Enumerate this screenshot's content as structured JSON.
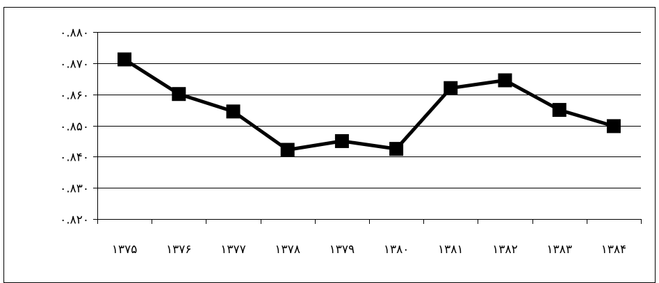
{
  "chart_data": {
    "type": "line",
    "title": "",
    "xlabel": "",
    "ylabel": "",
    "categories": [
      "۱۳۷۵",
      "۱۳۷۶",
      "۱۳۷۷",
      "۱۳۷۸",
      "۱۳۷۹",
      "۱۳۸۰",
      "۱۳۸۱",
      "۱۳۸۲",
      "۱۳۸۳",
      "۱۳۸۴"
    ],
    "series": [
      {
        "values": [
          0.8712,
          0.8601,
          0.8545,
          0.8422,
          0.845,
          0.8425,
          0.862,
          0.8645,
          0.855,
          0.8498
        ]
      }
    ],
    "ylim": [
      0.82,
      0.88
    ],
    "yticks": [
      0.88,
      0.87,
      0.86,
      0.85,
      0.84,
      0.83,
      0.82
    ],
    "ytick_labels": [
      "۰.۸۸۰",
      "۰.۸۷۰",
      "۰.۸۶۰",
      "۰.۸۵۰",
      "۰.۸۴۰",
      "۰.۸۳۰",
      "۰.۸۲۰"
    ],
    "grid": true,
    "legend": "none",
    "colors": {
      "line": "#000000",
      "marker": "#000000",
      "grid": "#000000",
      "background": "#ffffff",
      "frame": "#000000"
    }
  }
}
